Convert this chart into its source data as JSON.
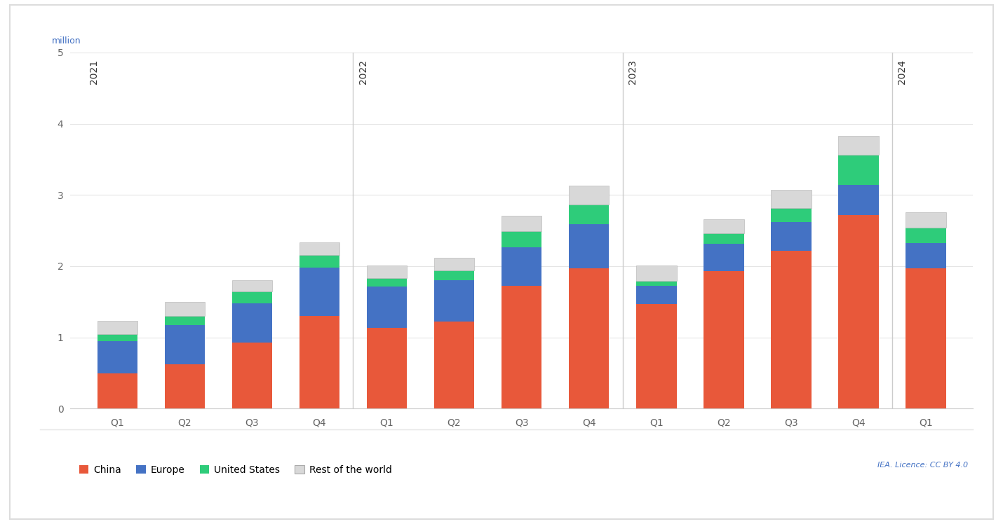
{
  "categories": [
    "Q1",
    "Q2",
    "Q3",
    "Q4",
    "Q1",
    "Q2",
    "Q3",
    "Q4",
    "Q1",
    "Q2",
    "Q3",
    "Q4",
    "Q1"
  ],
  "years": [
    "2021",
    "2022",
    "2023",
    "2024"
  ],
  "year_bar_starts": [
    0,
    4,
    8,
    12
  ],
  "china": [
    0.5,
    0.62,
    0.93,
    1.3,
    1.13,
    1.22,
    1.72,
    1.97,
    1.47,
    1.93,
    2.22,
    2.72,
    1.97
  ],
  "europe": [
    0.45,
    0.55,
    0.55,
    0.68,
    0.58,
    0.58,
    0.55,
    0.62,
    0.25,
    0.38,
    0.4,
    0.42,
    0.35
  ],
  "united_states": [
    0.1,
    0.13,
    0.17,
    0.18,
    0.12,
    0.14,
    0.22,
    0.27,
    0.07,
    0.15,
    0.2,
    0.42,
    0.22
  ],
  "rest_of_world": [
    0.18,
    0.2,
    0.15,
    0.17,
    0.18,
    0.18,
    0.22,
    0.27,
    0.22,
    0.2,
    0.25,
    0.27,
    0.22
  ],
  "color_china": "#E8583A",
  "color_europe": "#4472C4",
  "color_us": "#2ECC7A",
  "color_row": "#D8D8D8",
  "ylim": [
    0,
    5
  ],
  "yticks": [
    0,
    1,
    2,
    3,
    4,
    5
  ],
  "ylabel": "million",
  "bar_width": 0.6,
  "bg_color": "#FFFFFF",
  "grid_color": "#E5E5E5",
  "axis_color": "#CCCCCC",
  "year_label_color": "#333333",
  "million_color": "#4472C4",
  "license_text": "IEA. Licence: CC BY 4.0",
  "legend_items": [
    "China",
    "Europe",
    "United States",
    "Rest of the world"
  ]
}
